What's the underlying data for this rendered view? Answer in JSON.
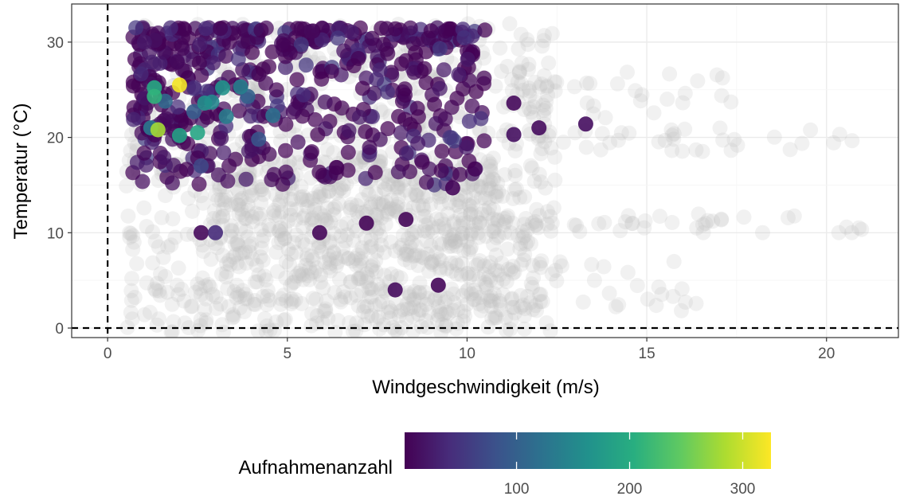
{
  "chart_data": {
    "type": "scatter",
    "xlabel": "Windgeschwindigkeit (m/s)",
    "ylabel": "Temperatur (°C)",
    "xlim": [
      -1,
      22
    ],
    "ylim": [
      -1,
      34
    ],
    "x_ticks": [
      0,
      5,
      10,
      15,
      20
    ],
    "y_ticks": [
      0,
      10,
      20,
      30
    ],
    "grid": true,
    "reference_lines": {
      "x": 0,
      "y": 0,
      "style": "dashed"
    },
    "background_points": {
      "color": "#bebebe",
      "note_visible": "dense grey semi-transparent cloud of unselected observations",
      "clusters": [
        {
          "xmin": 0.5,
          "xmax": 12.5,
          "ymin": -0.5,
          "ymax": 32
        },
        {
          "xmin": 3,
          "xmax": 11,
          "ymin": 1,
          "ymax": 18
        },
        {
          "xmin": 10,
          "xmax": 21.2,
          "ymin": 10,
          "ymax": 12
        },
        {
          "xmin": 10,
          "xmax": 21,
          "ymin": 18.5,
          "ymax": 21
        },
        {
          "xmin": 10,
          "xmax": 17.5,
          "ymin": 22,
          "ymax": 27
        },
        {
          "xmin": 11,
          "xmax": 16.5,
          "ymin": 1.5,
          "ymax": 7
        }
      ]
    },
    "highlighted_points": {
      "color_scale": "viridis",
      "dense_cluster": {
        "xmin": 0.7,
        "xmax": 10.5,
        "ymin": 10,
        "ymax": 31.5,
        "count_range": [
          1,
          60
        ]
      },
      "points": [
        {
          "x": 2.0,
          "y": 25.5,
          "count": 320
        },
        {
          "x": 1.4,
          "y": 20.8,
          "count": 280
        },
        {
          "x": 1.3,
          "y": 24.3,
          "count": 210
        },
        {
          "x": 1.3,
          "y": 25.2,
          "count": 195
        },
        {
          "x": 2.5,
          "y": 20.5,
          "count": 190
        },
        {
          "x": 2.0,
          "y": 20.2,
          "count": 185
        },
        {
          "x": 2.7,
          "y": 23.6,
          "count": 160
        },
        {
          "x": 2.9,
          "y": 23.7,
          "count": 150
        },
        {
          "x": 3.2,
          "y": 25.2,
          "count": 165
        },
        {
          "x": 3.7,
          "y": 25.3,
          "count": 140
        },
        {
          "x": 3.3,
          "y": 22.2,
          "count": 135
        },
        {
          "x": 4.6,
          "y": 22.3,
          "count": 120
        },
        {
          "x": 1.2,
          "y": 21.0,
          "count": 130
        },
        {
          "x": 1.6,
          "y": 23.8,
          "count": 110
        },
        {
          "x": 3.9,
          "y": 24.3,
          "count": 100
        },
        {
          "x": 2.4,
          "y": 22.7,
          "count": 95
        },
        {
          "x": 4.2,
          "y": 19.8,
          "count": 85
        },
        {
          "x": 2.6,
          "y": 17.0,
          "count": 70
        },
        {
          "x": 3.0,
          "y": 10.0,
          "count": 40
        },
        {
          "x": 13.3,
          "y": 21.4,
          "count": 12
        },
        {
          "x": 12.0,
          "y": 21.0,
          "count": 10
        },
        {
          "x": 11.3,
          "y": 23.6,
          "count": 8
        },
        {
          "x": 11.3,
          "y": 20.3,
          "count": 14
        },
        {
          "x": 9.6,
          "y": 14.7,
          "count": 6
        },
        {
          "x": 8.3,
          "y": 11.4,
          "count": 5
        },
        {
          "x": 7.2,
          "y": 11.0,
          "count": 4
        },
        {
          "x": 8.0,
          "y": 4.0,
          "count": 10
        },
        {
          "x": 9.2,
          "y": 4.5,
          "count": 6
        },
        {
          "x": 5.9,
          "y": 10.0,
          "count": 5
        },
        {
          "x": 2.6,
          "y": 10.0,
          "count": 8
        }
      ]
    },
    "legend": {
      "title": "Aufnahmenanzahl",
      "placement": "bottom",
      "min": 1,
      "max": 325,
      "ticks": [
        100,
        200,
        300
      ]
    }
  }
}
